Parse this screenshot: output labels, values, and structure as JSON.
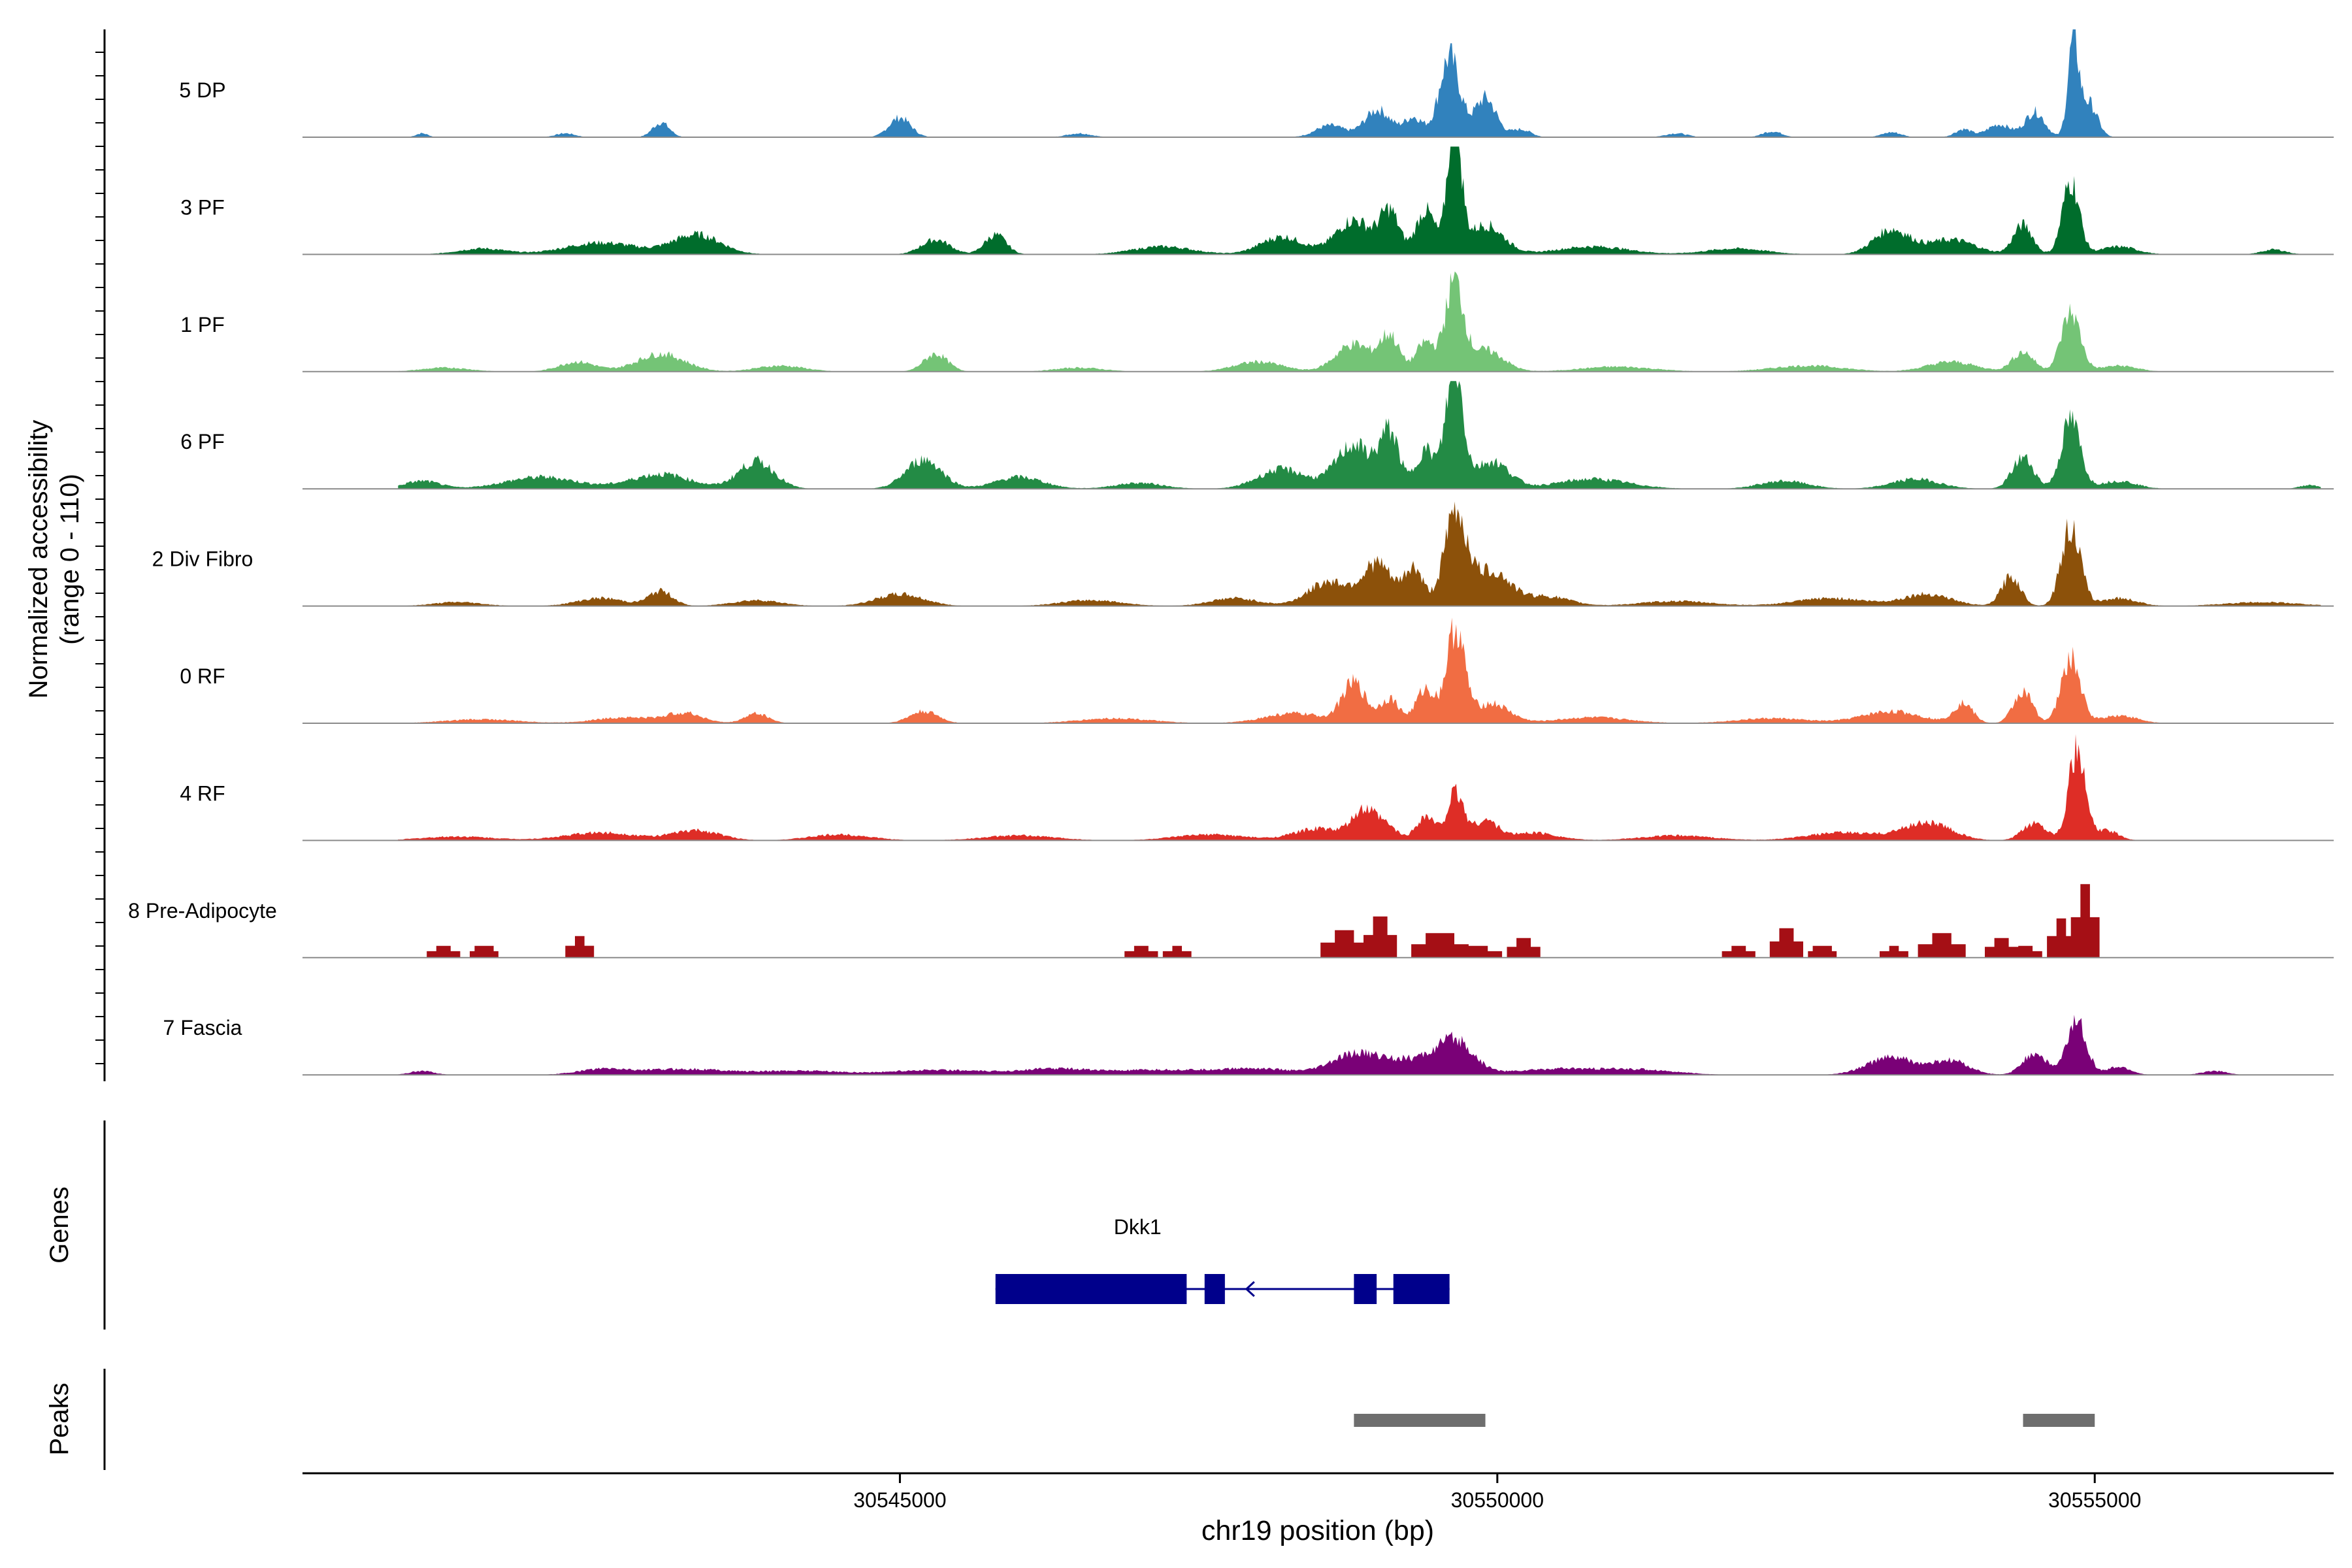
{
  "chart_data": {
    "type": "area",
    "ylabel_line1": "Normalized accessibility",
    "ylabel_line2": "(range 0 - 110)",
    "xlabel": "chr19 position (bp)",
    "xlim": [
      30540000,
      30557000
    ],
    "ylim": [
      0,
      110
    ],
    "x_ticks": [
      {
        "value": 30545000,
        "label": "30545000"
      },
      {
        "value": 30550000,
        "label": "30550000"
      },
      {
        "value": 30555000,
        "label": "30555000"
      }
    ],
    "series": [
      {
        "name": "5 DP",
        "color": "#3182bd",
        "style": "smooth",
        "peaks": [
          [
            30541000,
            4,
            50
          ],
          [
            30542200,
            4,
            80
          ],
          [
            30543000,
            15,
            70
          ],
          [
            30545000,
            20,
            90
          ],
          [
            30546500,
            4,
            100
          ],
          [
            30548600,
            12,
            120
          ],
          [
            30549000,
            28,
            110
          ],
          [
            30549300,
            20,
            80
          ],
          [
            30549600,
            82,
            85
          ],
          [
            30549900,
            40,
            90
          ],
          [
            30550200,
            8,
            80
          ],
          [
            30551500,
            4,
            90
          ],
          [
            30552300,
            6,
            80
          ],
          [
            30553300,
            5,
            80
          ],
          [
            30553900,
            8,
            70
          ],
          [
            30554200,
            13,
            100
          ],
          [
            30554500,
            26,
            80
          ],
          [
            30554820,
            96,
            45
          ],
          [
            30554950,
            35,
            70
          ]
        ]
      },
      {
        "name": "3 PF",
        "color": "#006d2c",
        "style": "smooth",
        "peaks": [
          [
            30541500,
            6,
            200
          ],
          [
            30542500,
            12,
            300
          ],
          [
            30543300,
            20,
            200
          ],
          [
            30545300,
            15,
            120
          ],
          [
            30545800,
            20,
            90
          ],
          [
            30547200,
            8,
            250
          ],
          [
            30548200,
            18,
            180
          ],
          [
            30548800,
            35,
            150
          ],
          [
            30549100,
            42,
            80
          ],
          [
            30549400,
            45,
            80
          ],
          [
            30549640,
            140,
            55
          ],
          [
            30549900,
            30,
            150
          ],
          [
            30550800,
            8,
            300
          ],
          [
            30552000,
            6,
            250
          ],
          [
            30553300,
            25,
            150
          ],
          [
            30553800,
            15,
            200
          ],
          [
            30554400,
            30,
            80
          ],
          [
            30554800,
            75,
            70
          ],
          [
            30555200,
            8,
            150
          ],
          [
            30556500,
            5,
            100
          ]
        ]
      },
      {
        "name": "1 PF",
        "color": "#74c476",
        "style": "smooth",
        "peaks": [
          [
            30541200,
            4,
            200
          ],
          [
            30542300,
            10,
            150
          ],
          [
            30543000,
            18,
            200
          ],
          [
            30544000,
            6,
            200
          ],
          [
            30545300,
            18,
            100
          ],
          [
            30546500,
            4,
            200
          ],
          [
            30548000,
            10,
            200
          ],
          [
            30548800,
            28,
            150
          ],
          [
            30549100,
            35,
            80
          ],
          [
            30549400,
            30,
            80
          ],
          [
            30549640,
            88,
            75
          ],
          [
            30549900,
            22,
            150
          ],
          [
            30551000,
            5,
            300
          ],
          [
            30552600,
            6,
            300
          ],
          [
            30553800,
            10,
            200
          ],
          [
            30554400,
            20,
            90
          ],
          [
            30554800,
            60,
            80
          ],
          [
            30555200,
            6,
            150
          ]
        ]
      },
      {
        "name": "6 PF",
        "color": "#238b45",
        "style": "smooth",
        "peaks": [
          [
            30541000,
            8,
            150
          ],
          [
            30542000,
            12,
            300
          ],
          [
            30543000,
            15,
            250
          ],
          [
            30543800,
            28,
            150
          ],
          [
            30545200,
            30,
            150
          ],
          [
            30546000,
            12,
            200
          ],
          [
            30547000,
            6,
            200
          ],
          [
            30548200,
            20,
            200
          ],
          [
            30548800,
            45,
            150
          ],
          [
            30549100,
            55,
            80
          ],
          [
            30549400,
            40,
            80
          ],
          [
            30549640,
            125,
            70
          ],
          [
            30549950,
            28,
            150
          ],
          [
            30550800,
            10,
            300
          ],
          [
            30552400,
            8,
            200
          ],
          [
            30553500,
            10,
            200
          ],
          [
            30554400,
            32,
            90
          ],
          [
            30554800,
            70,
            80
          ],
          [
            30555200,
            8,
            150
          ],
          [
            30556800,
            4,
            80
          ]
        ]
      },
      {
        "name": "2 Div Fibro",
        "color": "#8c510a",
        "style": "smooth",
        "peaks": [
          [
            30541300,
            4,
            200
          ],
          [
            30542500,
            8,
            200
          ],
          [
            30543000,
            15,
            100
          ],
          [
            30543800,
            6,
            200
          ],
          [
            30545000,
            12,
            200
          ],
          [
            30546600,
            6,
            250
          ],
          [
            30547800,
            8,
            200
          ],
          [
            30548600,
            25,
            180
          ],
          [
            30549000,
            42,
            120
          ],
          [
            30549300,
            38,
            80
          ],
          [
            30549650,
            92,
            95
          ],
          [
            30549950,
            35,
            150
          ],
          [
            30550400,
            10,
            200
          ],
          [
            30551500,
            5,
            300
          ],
          [
            30552800,
            8,
            300
          ],
          [
            30553600,
            12,
            200
          ],
          [
            30554300,
            30,
            80
          ],
          [
            30554800,
            80,
            80
          ],
          [
            30555200,
            8,
            150
          ],
          [
            30556400,
            4,
            300
          ]
        ]
      },
      {
        "name": "0 RF",
        "color": "#f16d43",
        "style": "smooth",
        "peaks": [
          [
            30541500,
            4,
            300
          ],
          [
            30542700,
            6,
            250
          ],
          [
            30543200,
            10,
            150
          ],
          [
            30543800,
            10,
            100
          ],
          [
            30545200,
            12,
            120
          ],
          [
            30546800,
            5,
            300
          ],
          [
            30548300,
            10,
            250
          ],
          [
            30548800,
            40,
            100
          ],
          [
            30549100,
            25,
            80
          ],
          [
            30549400,
            35,
            80
          ],
          [
            30549650,
            95,
            75
          ],
          [
            30549950,
            20,
            150
          ],
          [
            30550800,
            6,
            300
          ],
          [
            30552300,
            5,
            300
          ],
          [
            30553300,
            12,
            250
          ],
          [
            30553900,
            20,
            80
          ],
          [
            30554400,
            32,
            80
          ],
          [
            30554800,
            65,
            80
          ],
          [
            30555200,
            8,
            150
          ]
        ]
      },
      {
        "name": "4 RF",
        "color": "#de2d26",
        "style": "smooth",
        "peaks": [
          [
            30541300,
            4,
            300
          ],
          [
            30542500,
            8,
            300
          ],
          [
            30543300,
            10,
            200
          ],
          [
            30544500,
            6,
            250
          ],
          [
            30546000,
            5,
            300
          ],
          [
            30547600,
            6,
            300
          ],
          [
            30548500,
            12,
            200
          ],
          [
            30548900,
            30,
            110
          ],
          [
            30549100,
            10,
            80
          ],
          [
            30549400,
            25,
            80
          ],
          [
            30549650,
            48,
            70
          ],
          [
            30549900,
            20,
            100
          ],
          [
            30550300,
            8,
            200
          ],
          [
            30551500,
            5,
            300
          ],
          [
            30552900,
            8,
            300
          ],
          [
            30553600,
            18,
            200
          ],
          [
            30554500,
            18,
            100
          ],
          [
            30554850,
            90,
            70
          ],
          [
            30555100,
            10,
            100
          ]
        ]
      },
      {
        "name": "8 Pre-Adipocyte",
        "color": "#a50f15",
        "style": "blocky",
        "peaks": [
          [
            30541150,
            12,
            130
          ],
          [
            30541500,
            12,
            130
          ],
          [
            30542300,
            22,
            110
          ],
          [
            30547000,
            12,
            120
          ],
          [
            30547300,
            12,
            120
          ],
          [
            30548700,
            28,
            180
          ],
          [
            30549000,
            42,
            120
          ],
          [
            30549500,
            25,
            250
          ],
          [
            30549800,
            12,
            200
          ],
          [
            30550200,
            20,
            120
          ],
          [
            30552000,
            12,
            120
          ],
          [
            30552400,
            30,
            150
          ],
          [
            30552700,
            12,
            130
          ],
          [
            30553300,
            12,
            120
          ],
          [
            30553700,
            25,
            200
          ],
          [
            30554200,
            20,
            130
          ],
          [
            30554400,
            12,
            120
          ],
          [
            30554700,
            40,
            120
          ],
          [
            30554900,
            75,
            110
          ]
        ]
      },
      {
        "name": "7 Fascia",
        "color": "#7a0177",
        "style": "smooth",
        "peaks": [
          [
            30541000,
            4,
            100
          ],
          [
            30542500,
            5,
            200
          ],
          [
            30543200,
            6,
            400
          ],
          [
            30544200,
            4,
            300
          ],
          [
            30545300,
            5,
            400
          ],
          [
            30546300,
            6,
            300
          ],
          [
            30547200,
            5,
            400
          ],
          [
            30548000,
            6,
            300
          ],
          [
            30548800,
            18,
            200
          ],
          [
            30549300,
            15,
            300
          ],
          [
            30549650,
            28,
            150
          ],
          [
            30550500,
            6,
            350
          ],
          [
            30551200,
            5,
            300
          ],
          [
            30553300,
            18,
            200
          ],
          [
            30553800,
            14,
            150
          ],
          [
            30554500,
            22,
            100
          ],
          [
            30554850,
            55,
            80
          ],
          [
            30555200,
            8,
            100
          ],
          [
            30556000,
            4,
            100
          ]
        ]
      }
    ],
    "genes_track": {
      "label": "Genes",
      "genes": [
        {
          "name": "Dkk1",
          "start": 30545800,
          "end": 30549600,
          "strand": "-",
          "exons": [
            [
              30545800,
              30547400
            ],
            [
              30547550,
              30547720
            ],
            [
              30548800,
              30548990
            ],
            [
              30549130,
              30549600
            ]
          ]
        }
      ],
      "color": "#00008b"
    },
    "peaks_track": {
      "label": "Peaks",
      "color": "#6e6e6e",
      "regions": [
        [
          30548800,
          30549900
        ],
        [
          30554400,
          30555000
        ]
      ]
    }
  }
}
